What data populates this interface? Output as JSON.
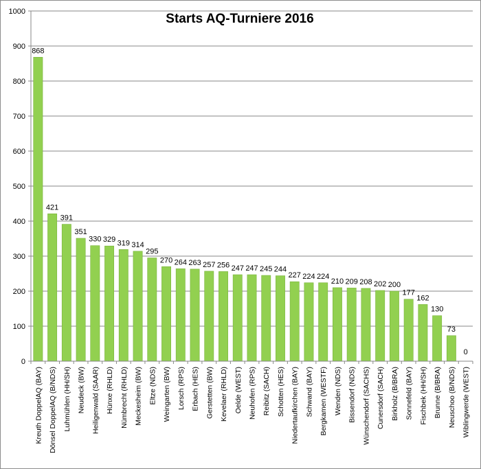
{
  "chart_data": {
    "type": "bar",
    "title": "Starts AQ-Turniere 2016",
    "xlabel": "",
    "ylabel": "",
    "ylim": [
      0,
      1000
    ],
    "yticks": [
      0,
      100,
      200,
      300,
      400,
      500,
      600,
      700,
      800,
      900,
      1000
    ],
    "grid": true,
    "legend": "none",
    "bar_color": "#92d050",
    "bar_border_color": "#7ab33d",
    "categories": [
      "Kreuth DoppelAQ (BAY)",
      "Dönsel DoppelAQ (B/NDS)",
      "Luhmühlen (HH/SH)",
      "Neudeck (BW)",
      "Heiligenwald (SAAR)",
      "Hünxe (RHLD)",
      "Nümbrecht (RHLD)",
      "Meckesheim (BW)",
      "Eltze (NDS)",
      "Weingarten (BW)",
      "Lorsch (RPS)",
      "Erbach (HES)",
      "Gerstetten (BW)",
      "Kevelaer (RHLD)",
      "Oelde (WEST)",
      "Neuhofen (RPS)",
      "Reibitz (SACH)",
      "Schotten (HES)",
      "Niedertaufkirchen (BAY)",
      "Schwand (BAY)",
      "Bergkamen (WESTF)",
      "Wenden (NDS)",
      "Bissendorf (NDS)",
      "Wünschendorf (SACHS)",
      "Cunersdorf (SACH)",
      "Birkholz (B/BRA)",
      "Sonnefeld (BAY)",
      "Fischbek (HH/SH)",
      "Brunne (B/BRA)",
      "Neuschoo (B/NDS)",
      "Wiblingwerde (WEST)"
    ],
    "values": [
      868,
      421,
      391,
      351,
      330,
      329,
      319,
      314,
      295,
      270,
      264,
      263,
      257,
      256,
      247,
      247,
      245,
      244,
      227,
      224,
      224,
      210,
      209,
      208,
      202,
      200,
      177,
      162,
      130,
      73,
      0
    ]
  }
}
